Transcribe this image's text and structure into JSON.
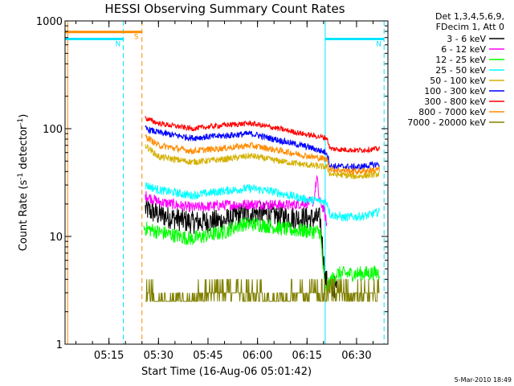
{
  "chart_data": {
    "type": "line",
    "title": "HESSI Observing Summary Count Rates",
    "xlabel": "Start Time (16-Aug-06 05:01:42)",
    "ylabel_main": "Count Rate (s",
    "ylabel_sup1": "-1",
    "ylabel_mid": " detector",
    "ylabel_sup2": "-1",
    "ylabel_end": ")",
    "y_scale": "log",
    "ylim": [
      1,
      1000
    ],
    "xlim": [
      "05:01:42",
      "06:39:30"
    ],
    "x_ticks": [
      "05:15",
      "05:30",
      "05:45",
      "06:00",
      "06:15",
      "06:30"
    ],
    "y_ticks": [
      "1",
      "10",
      "100",
      "1000"
    ],
    "legend_header": [
      "Det 1,3,4,5,6,9,",
      "FDecim 1, Att 0"
    ],
    "legend_position": "outside-right",
    "flags": [
      {
        "label": "S",
        "color": "#ff8c00",
        "start": "05:01:42",
        "end": "05:25:00",
        "level": 790
      },
      {
        "label": "N",
        "color": "#00e5ff",
        "start": "05:01:42",
        "end": "05:19:20",
        "level": 680
      },
      {
        "label": "N",
        "color": "#00e5ff",
        "start": "06:20:30",
        "end": "06:38:20",
        "level": 680
      }
    ],
    "vertical_markers": [
      {
        "time": "05:01:42",
        "color": "#00e5ff",
        "style": "solid"
      },
      {
        "time": "05:02:30",
        "color": "#ff8c00",
        "style": "solid"
      },
      {
        "time": "05:19:20",
        "color": "#00e5ff",
        "style": "dashed"
      },
      {
        "time": "05:25:00",
        "color": "#ff8c00",
        "style": "dashed"
      },
      {
        "time": "06:20:30",
        "color": "#00e5ff",
        "style": "solid"
      },
      {
        "time": "06:38:20",
        "color": "#00e5ff",
        "style": "dashed"
      }
    ],
    "series": [
      {
        "name": "3 - 6 keV",
        "color": "#000000",
        "noise": 0.11,
        "points": [
          [
            "05:26:00",
            18
          ],
          [
            "05:30",
            16
          ],
          [
            "05:40",
            13.5
          ],
          [
            "05:50",
            14
          ],
          [
            "05:55",
            16
          ],
          [
            "06:00",
            16.5
          ],
          [
            "06:10",
            15
          ],
          [
            "06:19",
            14.5
          ],
          [
            "06:20:30",
            4
          ],
          [
            "06:22",
            3.4
          ],
          [
            "06:24",
            3.4
          ]
        ]
      },
      {
        "name": "6 - 12 keV",
        "color": "#ff00ff",
        "noise": 0.05,
        "points": [
          [
            "05:26:00",
            24
          ],
          [
            "05:30",
            21
          ],
          [
            "05:40",
            18.5
          ],
          [
            "05:50",
            19.5
          ],
          [
            "06:00",
            20
          ],
          [
            "06:10",
            19.5
          ],
          [
            "06:17",
            21
          ],
          [
            "06:18",
            36
          ],
          [
            "06:18:40",
            22
          ],
          [
            "06:20",
            18
          ],
          [
            "06:21",
            13
          ]
        ]
      },
      {
        "name": "12 - 25 keV",
        "color": "#00ff00",
        "noise": 0.07,
        "points": [
          [
            "05:25:30",
            12
          ],
          [
            "05:30",
            11
          ],
          [
            "05:40",
            9.5
          ],
          [
            "05:50",
            11
          ],
          [
            "05:55",
            13
          ],
          [
            "06:00",
            13
          ],
          [
            "06:10",
            11.5
          ],
          [
            "06:19",
            11
          ],
          [
            "06:20:30",
            3
          ],
          [
            "06:22",
            3.8
          ],
          [
            "06:24",
            4.5
          ],
          [
            "06:30",
            4.5
          ],
          [
            "06:37",
            4.6
          ]
        ]
      },
      {
        "name": "25 - 50 keV",
        "color": "#00ffff",
        "noise": 0.04,
        "points": [
          [
            "05:26:00",
            30
          ],
          [
            "05:30",
            27
          ],
          [
            "05:40",
            24
          ],
          [
            "05:50",
            26.5
          ],
          [
            "05:58",
            28
          ],
          [
            "06:05",
            26
          ],
          [
            "06:15",
            22
          ],
          [
            "06:21",
            21
          ],
          [
            "06:22",
            16
          ],
          [
            "06:26",
            15
          ],
          [
            "06:33",
            15.5
          ],
          [
            "06:37",
            17
          ]
        ]
      },
      {
        "name": "50 - 100 keV",
        "color": "#d4b000",
        "noise": 0.03,
        "points": [
          [
            "05:26:00",
            70
          ],
          [
            "05:30",
            55
          ],
          [
            "05:40",
            49
          ],
          [
            "05:50",
            52
          ],
          [
            "05:58",
            56
          ],
          [
            "06:05",
            51
          ],
          [
            "06:15",
            46
          ],
          [
            "06:21",
            44
          ],
          [
            "06:22",
            38
          ],
          [
            "06:30",
            36
          ],
          [
            "06:37",
            38
          ]
        ]
      },
      {
        "name": "100 - 300 keV",
        "color": "#0000ff",
        "noise": 0.03,
        "points": [
          [
            "05:26:00",
            100
          ],
          [
            "05:30",
            92
          ],
          [
            "05:40",
            82
          ],
          [
            "05:50",
            86
          ],
          [
            "05:58",
            90
          ],
          [
            "06:05",
            80
          ],
          [
            "06:15",
            68
          ],
          [
            "06:21",
            60
          ],
          [
            "06:22",
            45
          ],
          [
            "06:30",
            44
          ],
          [
            "06:37",
            47
          ]
        ]
      },
      {
        "name": "300 - 800 keV",
        "color": "#ff0000",
        "noise": 0.025,
        "points": [
          [
            "05:26:00",
            125
          ],
          [
            "05:30",
            112
          ],
          [
            "05:40",
            100
          ],
          [
            "05:50",
            108
          ],
          [
            "05:58",
            112
          ],
          [
            "06:05",
            102
          ],
          [
            "06:15",
            88
          ],
          [
            "06:21",
            82
          ],
          [
            "06:22",
            65
          ],
          [
            "06:30",
            63
          ],
          [
            "06:37",
            65
          ]
        ]
      },
      {
        "name": "800 - 7000 keV",
        "color": "#ff8c00",
        "noise": 0.03,
        "points": [
          [
            "05:26:00",
            85
          ],
          [
            "05:30",
            70
          ],
          [
            "05:40",
            62
          ],
          [
            "05:50",
            66
          ],
          [
            "05:58",
            70
          ],
          [
            "06:05",
            64
          ],
          [
            "06:15",
            56
          ],
          [
            "06:21",
            52
          ],
          [
            "06:22",
            42
          ],
          [
            "06:30",
            40
          ],
          [
            "06:37",
            42
          ]
        ]
      },
      {
        "name": "7000 - 20000 keV",
        "color": "#808000",
        "noise": 0.0,
        "points": [
          [
            "05:26:00",
            3
          ],
          [
            "05:30",
            2.5
          ],
          [
            "05:40",
            2.6
          ],
          [
            "05:45",
            3.0
          ],
          [
            "05:50",
            3.2
          ],
          [
            "05:58",
            2.8
          ],
          [
            "06:05",
            2.6
          ],
          [
            "06:15",
            2.8
          ],
          [
            "06:22",
            2.7
          ],
          [
            "06:30",
            2.7
          ],
          [
            "06:37",
            2.7
          ]
        ]
      }
    ]
  },
  "footer": {
    "timestamp": "5-Mar-2010 18:49"
  }
}
